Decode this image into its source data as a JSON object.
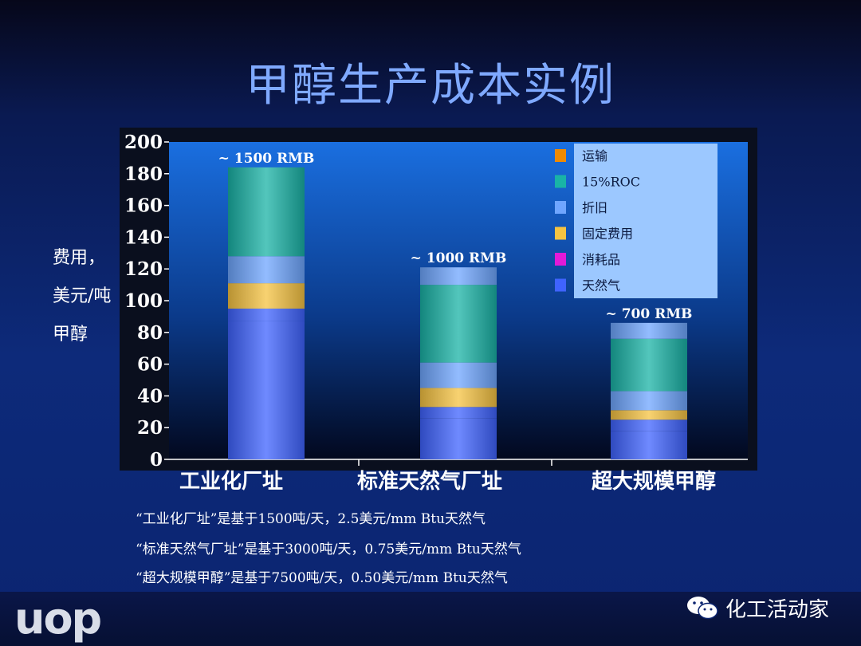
{
  "slide": {
    "title": "甲醇生产成本实例",
    "ylabel_lines": [
      "费用，",
      "美元/吨",
      "甲醇"
    ],
    "notes": [
      "“工业化厂址”是基于1500吨/天，2.5美元/mm Btu天然气",
      "“标准天然气厂址”是基于3000吨/天，0.75美元/mm Btu天然气",
      "“超大规模甲醇”是基于7500吨/天，0.50美元/mm Btu天然气"
    ],
    "logo": "uop",
    "brand": "化工活动家",
    "brand_icon": "wechat-icon"
  },
  "chart_data": {
    "type": "bar",
    "stacked": true,
    "categories": [
      "工业化厂址",
      "标准天然气厂址",
      "超大规模甲醇"
    ],
    "bar_labels": [
      "~ 1500 RMB",
      "~ 1000 RMB",
      "~ 700 RMB"
    ],
    "ylim": [
      0,
      200
    ],
    "yticks": [
      0,
      20,
      40,
      60,
      80,
      100,
      120,
      140,
      160,
      180,
      200
    ],
    "legend_position": "top-right",
    "series": [
      {
        "name": "天然气",
        "color": "#3f63ff",
        "values": [
          87,
          26,
          18
        ]
      },
      {
        "name": "消耗品",
        "color": "#e21ad8",
        "values": [
          8,
          7,
          7
        ]
      },
      {
        "name": "固定费用",
        "color": "#f5c342",
        "values": [
          16,
          12,
          6
        ]
      },
      {
        "name": "折旧",
        "color": "#6fa6ff",
        "values": [
          17,
          16,
          12
        ]
      },
      {
        "name": "15%ROC",
        "color": "#19b3a6",
        "values": [
          56,
          49,
          33
        ]
      },
      {
        "name": "运输",
        "color": "#f08a00",
        "values": [
          0,
          11,
          10
        ]
      }
    ],
    "legend_order": [
      "运输",
      "15%ROC",
      "折旧",
      "固定费用",
      "消耗品",
      "天然气"
    ]
  }
}
